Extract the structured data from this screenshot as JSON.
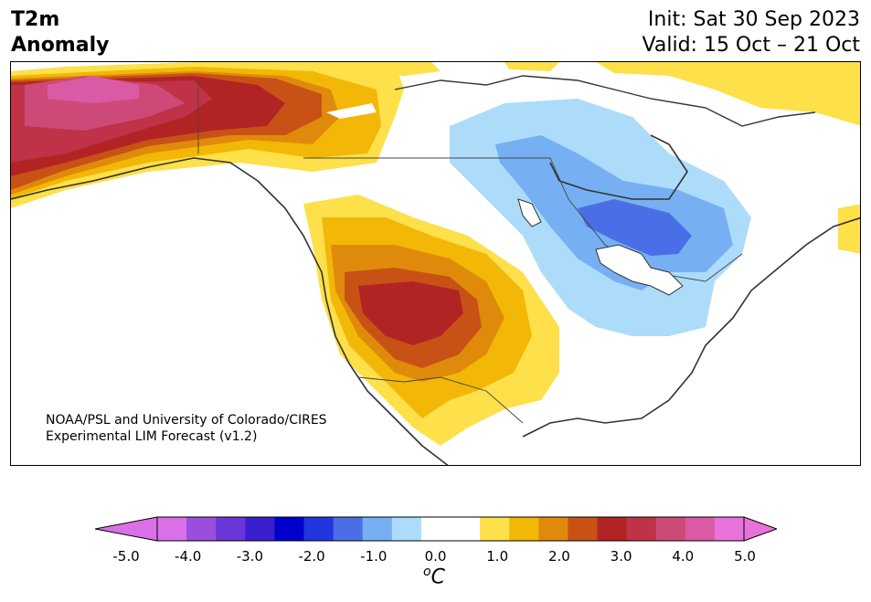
{
  "title": {
    "variable_line1": "T2m",
    "variable_line2": "Anomaly",
    "init": "Init: Sat 30 Sep 2023",
    "valid": "Valid: 15 Oct – 21 Oct"
  },
  "credit": {
    "line1": "NOAA/PSL and University of Colorado/CIRES",
    "line2": "Experimental LIM Forecast (v1.2)"
  },
  "colorbar": {
    "units_base": "C",
    "units_sup": "o",
    "tick_labels": [
      "-5.0",
      "-4.0",
      "-3.0",
      "-2.0",
      "-1.0",
      "0.0",
      "1.0",
      "2.0",
      "3.0",
      "4.0",
      "5.0"
    ],
    "colors": [
      "#d970e8",
      "#9a4fdc",
      "#6b36d9",
      "#3a1fcf",
      "#0000cc",
      "#2236dd",
      "#4a6ee6",
      "#76b0f2",
      "#acdcfa",
      "#ffffff",
      "#ffffff",
      "#fde04a",
      "#f2b707",
      "#e08a0c",
      "#c85216",
      "#b22424",
      "#bf3248",
      "#cd4a78",
      "#db5aa5",
      "#e872d9"
    ],
    "extend_low_color": "#d970e8",
    "extend_high_color": "#e872d9"
  },
  "map": {
    "region": "North America",
    "colors": {
      "plus_1": "#fde04a",
      "plus_1_5": "#f2b707",
      "plus_2": "#e08a0c",
      "plus_2_5": "#c85216",
      "plus_3": "#b22424",
      "plus_3_5": "#bf3248",
      "plus_4": "#cd4a78",
      "plus_4_5": "#db5aa5",
      "minus_1": "#acdcfa",
      "minus_1_5": "#76b0f2",
      "minus_2": "#4a6ee6",
      "coast": "#333333"
    }
  }
}
